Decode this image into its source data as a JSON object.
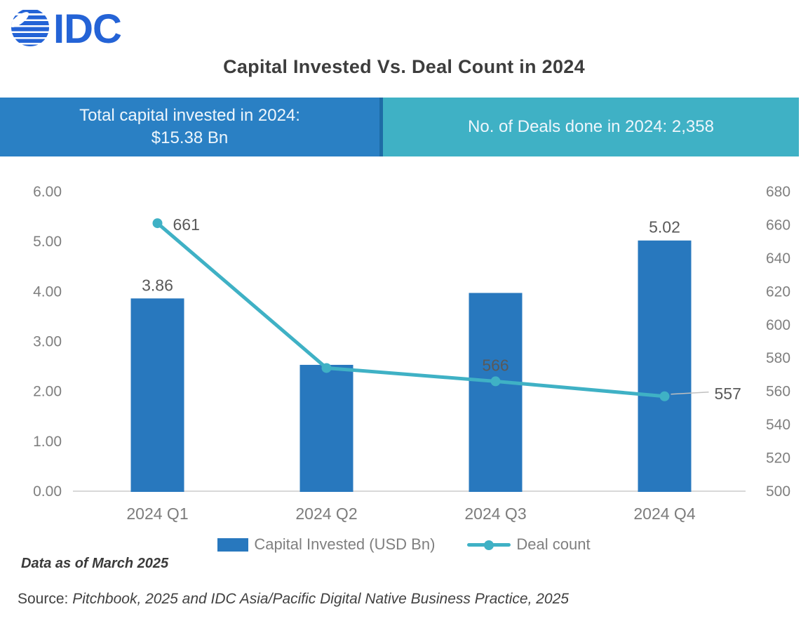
{
  "logo": {
    "text": "IDC",
    "color": "#2463d6"
  },
  "title": "Capital Invested Vs. Deal Count in 2024",
  "banners": {
    "left": {
      "line1": "Total capital invested in 2024:",
      "line2": "$15.38 Bn",
      "bg": "#2a80c4"
    },
    "right": {
      "text": "No. of Deals done in 2024: 2,358",
      "bg": "#3fb1c5"
    }
  },
  "chart_data": {
    "type": "bar",
    "subtype": "bar+line combo, dual axis",
    "title": "Capital Invested Vs. Deal Count in 2024",
    "categories": [
      "2024 Q1",
      "2024 Q2",
      "2024 Q3",
      "2024 Q4"
    ],
    "series": [
      {
        "name": "Capital Invested (USD Bn)",
        "type": "bar",
        "axis": "left",
        "color": "#2878be",
        "values": [
          3.86,
          2.53,
          3.97,
          5.02
        ],
        "point_labels": [
          "3.86",
          "",
          "",
          "5.02"
        ]
      },
      {
        "name": "Deal count",
        "type": "line",
        "axis": "right",
        "color": "#3fb1c5",
        "values": [
          661,
          574,
          566,
          557
        ],
        "point_labels": [
          "661",
          "",
          "566",
          "557"
        ]
      }
    ],
    "left_axis": {
      "min": 0,
      "max": 6,
      "ticks": [
        "6.00",
        "5.00",
        "4.00",
        "3.00",
        "2.00",
        "1.00",
        "0.00"
      ]
    },
    "right_axis": {
      "min": 500,
      "max": 680,
      "ticks": [
        "680",
        "660",
        "640",
        "620",
        "600",
        "580",
        "560",
        "540",
        "520",
        "500"
      ]
    },
    "grid": "off",
    "legend_position": "bottom-center",
    "legend": [
      {
        "label": "Capital Invested (USD Bn)",
        "marker": "bar-swatch"
      },
      {
        "label": "Deal count",
        "marker": "line-swatch"
      }
    ],
    "label_colors": {
      "data_label": "#595959",
      "overlapped_label": "#6e665c",
      "tick": "#7f7f7f"
    }
  },
  "footnote": "Data as of March 2025",
  "source": {
    "prefix": "Source: ",
    "italic": "Pitchbook, 2025 and IDC Asia/Pacific Digital Native Business Practice, 2025"
  }
}
